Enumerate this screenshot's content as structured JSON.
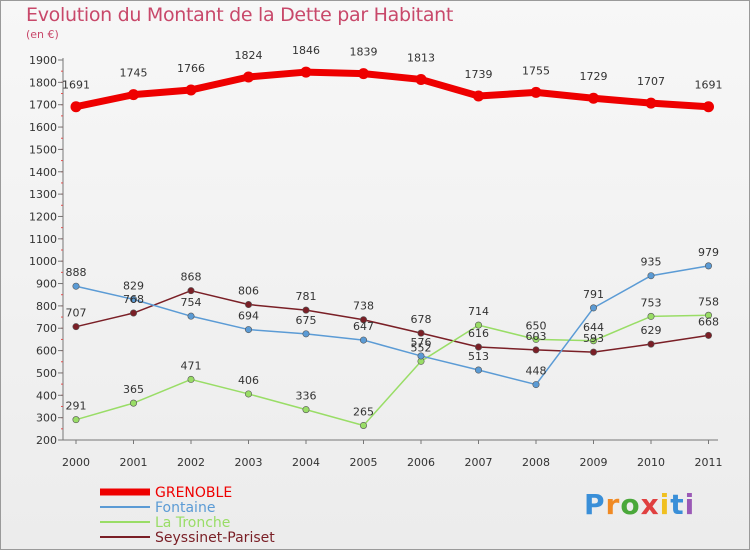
{
  "chart_data": {
    "type": "line",
    "title": "Evolution du Montant de la Dette par Habitant",
    "subtitle": "(en €)",
    "categories": [
      "2000",
      "2001",
      "2002",
      "2003",
      "2004",
      "2005",
      "2006",
      "2007",
      "2008",
      "2009",
      "2010",
      "2011"
    ],
    "y_ticks": [
      "200",
      "300",
      "400",
      "500",
      "600",
      "700",
      "800",
      "900",
      "1000",
      "1100",
      "1200",
      "1300",
      "1400",
      "1500",
      "1600",
      "1700",
      "1800",
      "1900"
    ],
    "ylim": [
      200,
      1900
    ],
    "grid": false,
    "legend_position": "bottom-left",
    "series": [
      {
        "name": "GRENOBLE",
        "color": "#ee0000",
        "values": [
          1691,
          1745,
          1766,
          1824,
          1846,
          1839,
          1813,
          1739,
          1755,
          1729,
          1707,
          1691
        ],
        "labels": [
          "1691",
          "1745",
          "1766",
          "1824",
          "1846",
          "1839",
          "1813",
          "1739",
          "1755",
          "1729",
          "1707",
          "1691"
        ]
      },
      {
        "name": "Fontaine",
        "color": "#5b9bd5",
        "values": [
          888,
          829,
          754,
          694,
          675,
          647,
          576,
          513,
          448,
          791,
          935,
          979
        ],
        "labels": [
          "888",
          "829",
          "754",
          "694",
          "675",
          "647",
          "576",
          "513",
          "448",
          "791",
          "935",
          "979"
        ]
      },
      {
        "name": "La Tronche",
        "color": "#99dd66",
        "values": [
          291,
          365,
          471,
          406,
          336,
          265,
          552,
          714,
          650,
          644,
          753,
          758
        ],
        "labels": [
          "291",
          "365",
          "471",
          "406",
          "336",
          "265",
          "552",
          "714",
          "650",
          "644",
          "753",
          "758"
        ]
      },
      {
        "name": "Seyssinet-Pariset",
        "color": "#7a1f26",
        "values": [
          707,
          768,
          868,
          806,
          781,
          738,
          678,
          616,
          603,
          593,
          629,
          668
        ],
        "labels": [
          "707",
          "768",
          "868",
          "806",
          "781",
          "738",
          "678",
          "616",
          "603",
          "593",
          "629",
          "668"
        ]
      }
    ]
  },
  "brand": {
    "letters": [
      "P",
      "r",
      "o",
      "x",
      "i",
      "t",
      "i"
    ],
    "colors": [
      "#3a8fd8",
      "#f08a24",
      "#4aa83a",
      "#e04040",
      "#f0c020",
      "#3a8fd8",
      "#9b59b6"
    ]
  }
}
